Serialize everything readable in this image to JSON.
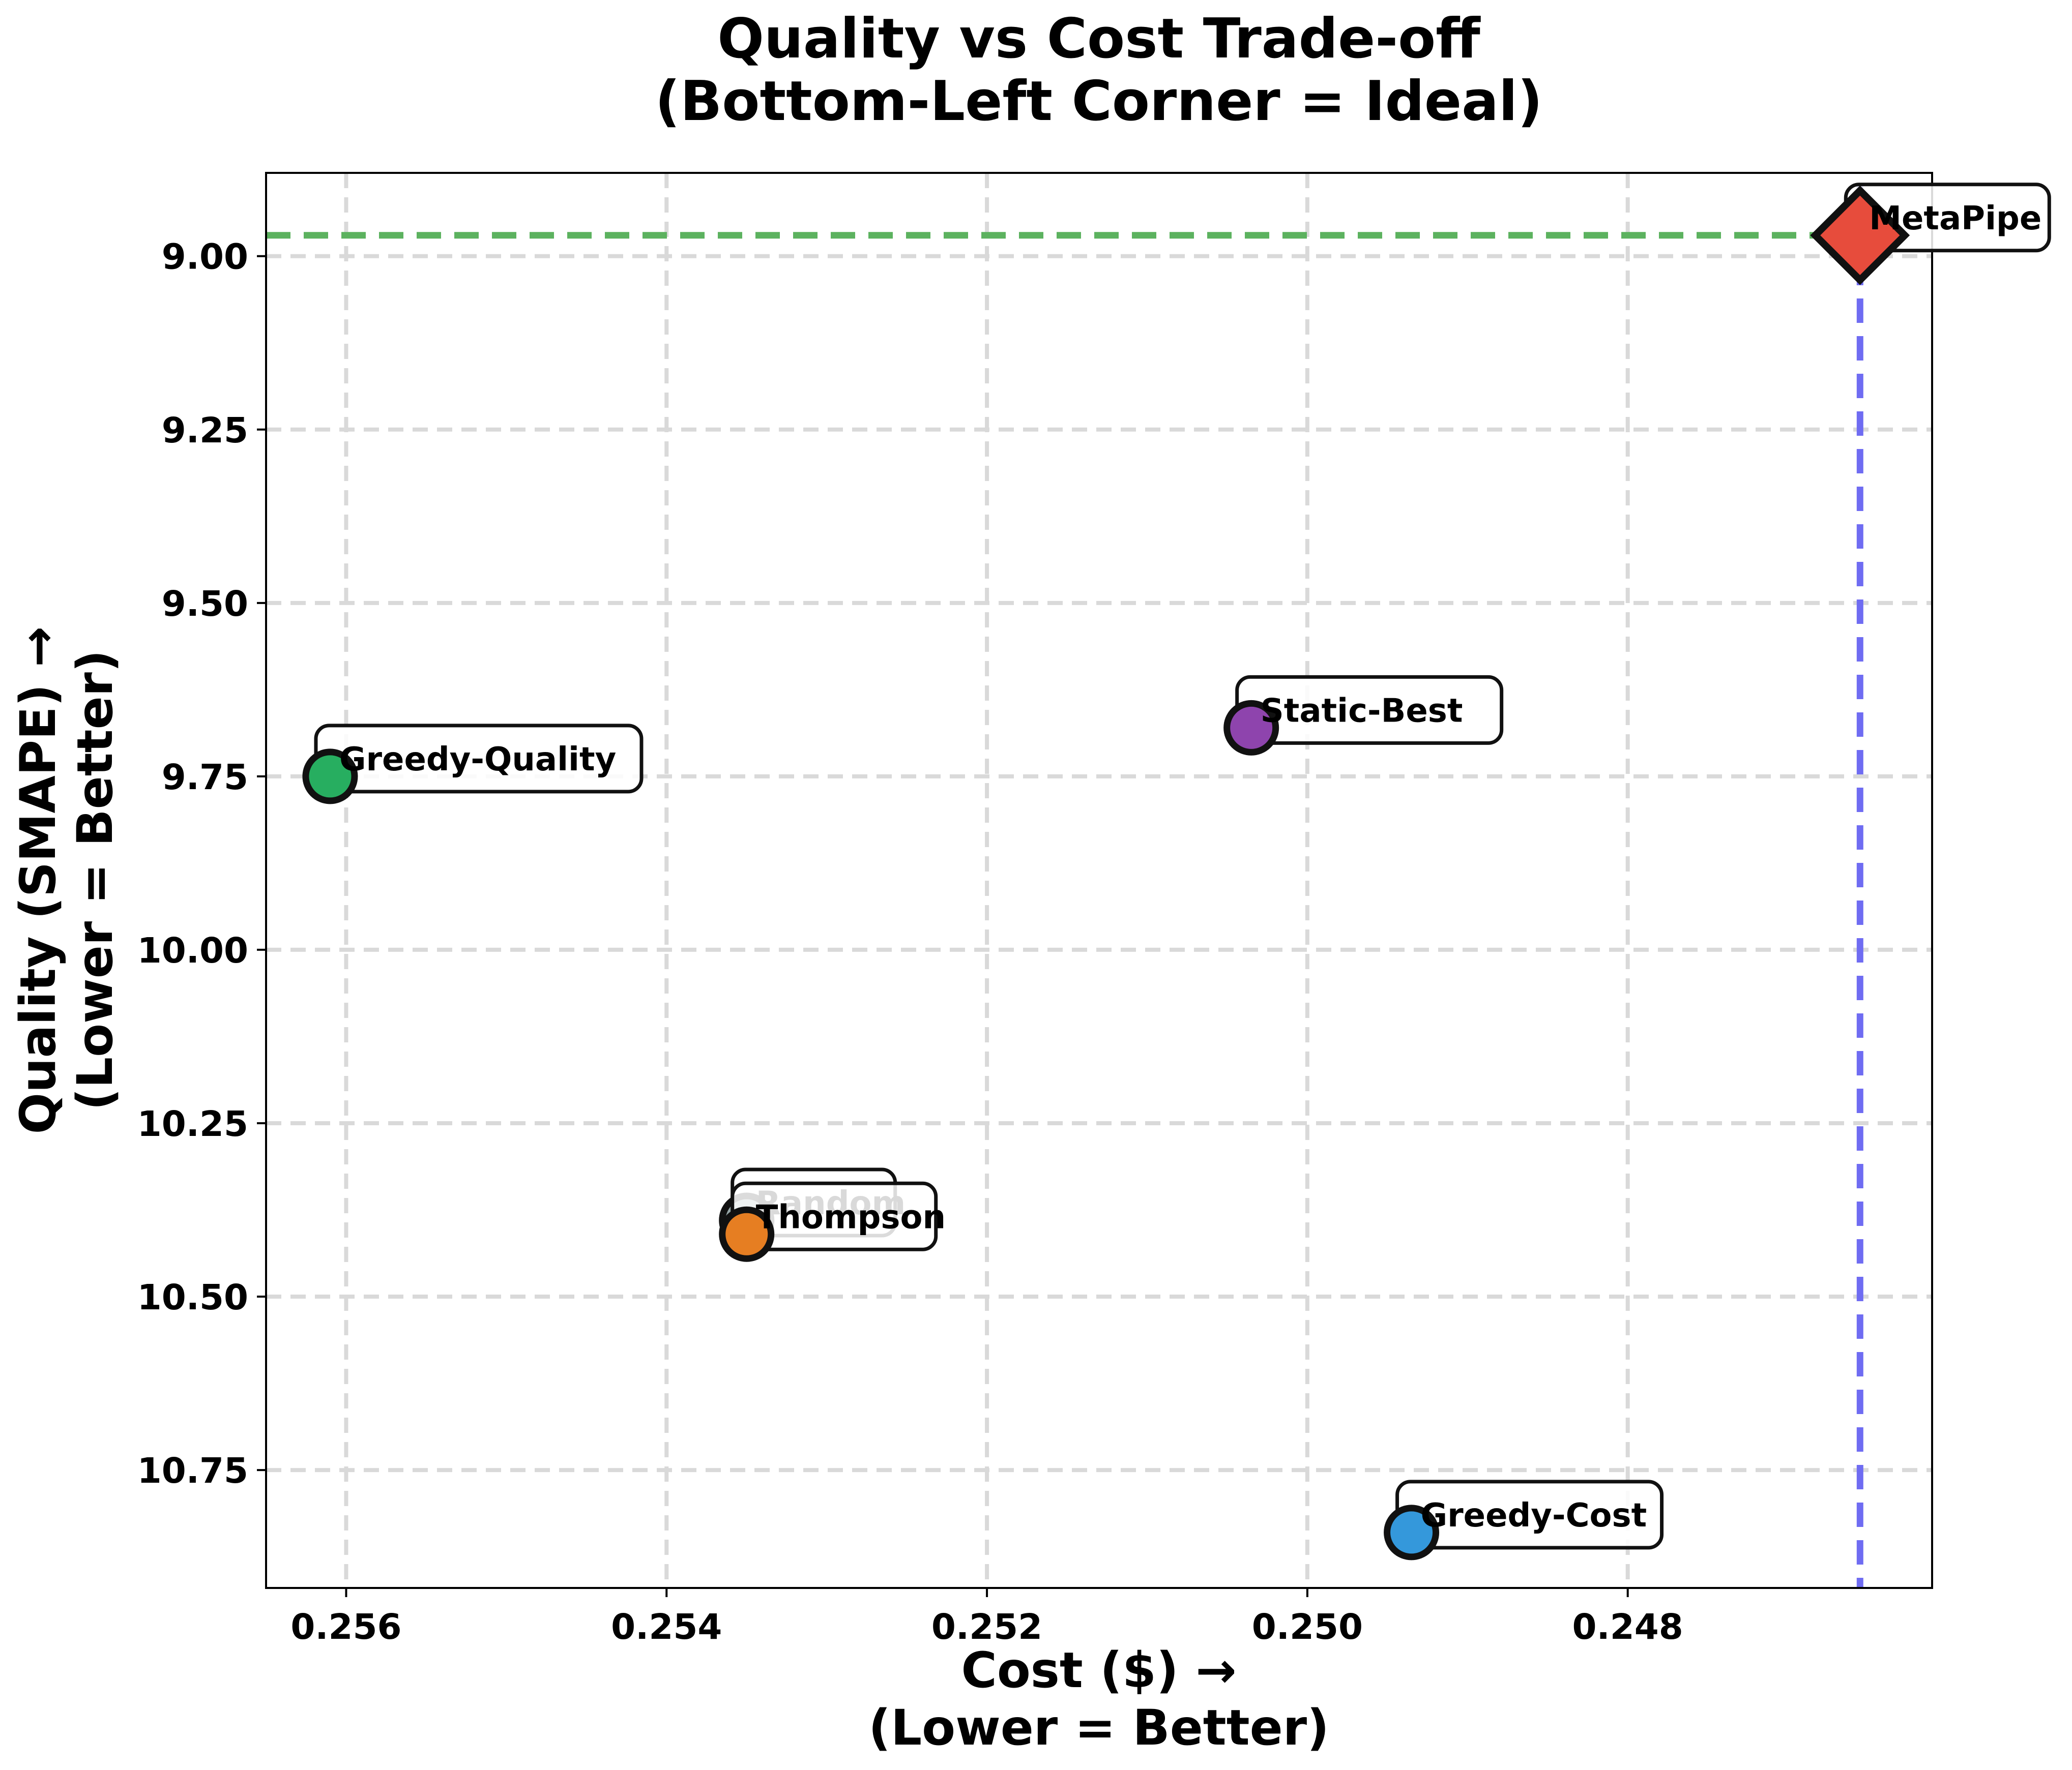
{
  "chart_data": {
    "type": "scatter",
    "title": [
      "Quality vs Cost Trade-off",
      "(Bottom-Left Corner = Ideal)"
    ],
    "xlabel": [
      "Cost ($) →",
      "(Lower = Better)"
    ],
    "ylabel": [
      "Quality (SMAPE) →",
      "(Lower = Better)"
    ],
    "x_inverted": true,
    "y_inverted": true,
    "xlim": [
      0.2565,
      0.2461
    ],
    "ylim": [
      8.88,
      10.92
    ],
    "x_ticks": [
      0.256,
      0.254,
      0.252,
      0.25,
      0.248
    ],
    "x_tick_labels": [
      "0.256",
      "0.254",
      "0.252",
      "0.250",
      "0.248"
    ],
    "y_ticks": [
      9.0,
      9.25,
      9.5,
      9.75,
      10.0,
      10.25,
      10.5,
      10.75
    ],
    "y_tick_labels": [
      "9.00",
      "9.25",
      "9.50",
      "9.75",
      "10.00",
      "10.25",
      "10.50",
      "10.75"
    ],
    "grid": true,
    "reference_lines": [
      {
        "orientation": "horizontal",
        "value": 8.97,
        "color": "#5cb25f"
      },
      {
        "orientation": "vertical",
        "value": 0.24655,
        "color": "#6f6cf2"
      }
    ],
    "points": [
      {
        "label": "Random",
        "x": 0.2535,
        "y": 10.39,
        "color": "#95a5a6",
        "marker": "circle"
      },
      {
        "label": "Greedy-Quality",
        "x": 0.2561,
        "y": 9.75,
        "color": "#27ae60",
        "marker": "circle"
      },
      {
        "label": "Static-Best",
        "x": 0.25035,
        "y": 9.68,
        "color": "#8e44ad",
        "marker": "circle"
      },
      {
        "label": "Thompson",
        "x": 0.2535,
        "y": 10.41,
        "color": "#e67e22",
        "marker": "circle"
      },
      {
        "label": "Greedy-Cost",
        "x": 0.24935,
        "y": 10.84,
        "color": "#3498db",
        "marker": "circle"
      },
      {
        "label": "MetaPipe",
        "x": 0.24655,
        "y": 8.97,
        "color": "#e74c3c",
        "marker": "diamond"
      }
    ]
  }
}
